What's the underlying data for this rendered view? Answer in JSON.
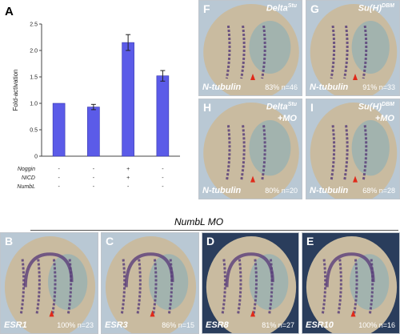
{
  "panel_a": {
    "letter": "A",
    "chart_data": {
      "type": "bar",
      "ylabel": "Fold-activation",
      "ylim": [
        0,
        2.5
      ],
      "yticks": [
        "0",
        "0.5",
        "1.0",
        "1.5",
        "2.0",
        "2.5"
      ],
      "values": [
        1.0,
        0.93,
        2.15,
        1.52
      ],
      "errors": [
        0.0,
        0.05,
        0.15,
        0.1
      ],
      "conditions": [
        {
          "name": "Noggin",
          "marks": [
            "-",
            "-",
            "+",
            "-"
          ]
        },
        {
          "name": "NICD",
          "marks": [
            "-",
            "-",
            "+",
            "-"
          ]
        },
        {
          "name": "NumbL",
          "marks": [
            "-",
            "-",
            "-",
            "-"
          ]
        }
      ],
      "bar_color": "#5b5be8"
    }
  },
  "top_panels": [
    {
      "letter": "F",
      "corner": "Delta",
      "corner_sup": "Stu",
      "mo": "",
      "gene": "N-tubulin",
      "stat": "83% n=46"
    },
    {
      "letter": "G",
      "corner": "Su(H)",
      "corner_sup": "DBM",
      "mo": "",
      "gene": "N-tubulin",
      "stat": "91% n=33"
    },
    {
      "letter": "H",
      "corner": "Delta",
      "corner_sup": "Stu",
      "mo": "+MO",
      "gene": "N-tubulin",
      "stat": "80% n=20"
    },
    {
      "letter": "I",
      "corner": "Su(H)",
      "corner_sup": "DBM",
      "mo": "+MO",
      "gene": "N-tubulin",
      "stat": "68% n=28"
    }
  ],
  "numbl_header": "NumbL MO",
  "bottom_panels": [
    {
      "letter": "B",
      "gene": "ESR1",
      "stat": "100% n=23"
    },
    {
      "letter": "C",
      "gene": "ESR3",
      "stat": "86% n=15"
    },
    {
      "letter": "D",
      "gene": "ESR8",
      "stat": "81% n=27"
    },
    {
      "letter": "E",
      "gene": "ESR10",
      "stat": "100% n=16"
    }
  ],
  "colors": {
    "embryo_bg_light": "#b9c8d4",
    "embryo_bg_dark": "#2a3d5c",
    "embryo_tan": "#c9bba0",
    "stain_purple": "#5b3f7a",
    "stain_blue": "#5aa6c8",
    "arrow_red": "#e02a1a"
  }
}
